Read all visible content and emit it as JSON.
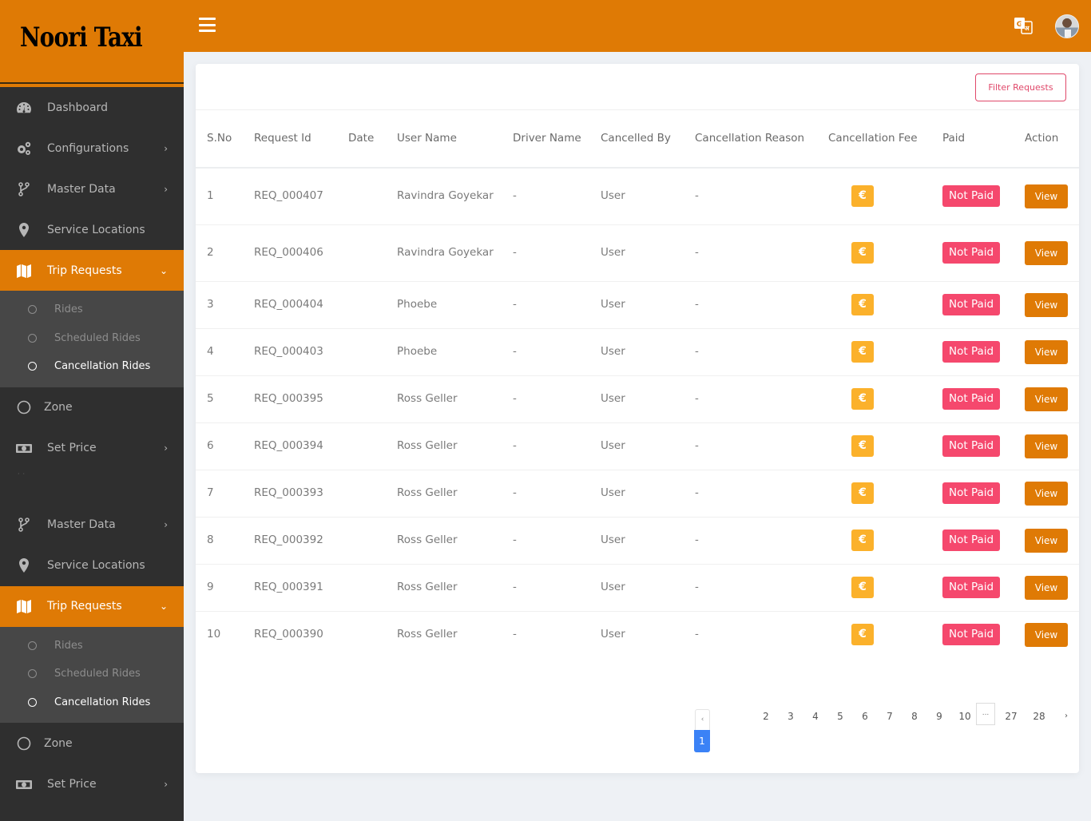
{
  "brand": {
    "title": "Noori Taxi"
  },
  "colors": {
    "brand_orange": "#df7a05",
    "sidebar_bg": "#2f2f2f",
    "submenu_bg": "#474747",
    "fee_badge": "#fbb12b",
    "not_paid_badge": "#f5486d",
    "filter_border": "#e0486a",
    "page_active": "#3b82f6"
  },
  "topbar": {
    "menu_icon": "hamburger-icon",
    "translate_icon": "google-translate-icon",
    "avatar_alt": "user-avatar"
  },
  "sidebar": {
    "items": [
      {
        "label": "Dashboard",
        "icon": "dashboard-gauge-icon",
        "chevron": ""
      },
      {
        "label": "Configurations",
        "icon": "gears-icon",
        "chevron": "›"
      },
      {
        "label": "Master Data",
        "icon": "code-branch-icon",
        "chevron": "›"
      },
      {
        "label": "Service Locations",
        "icon": "map-marker-icon",
        "chevron": ""
      },
      {
        "label": "Trip Requests",
        "icon": "map-icon",
        "chevron": "⌄",
        "active": true,
        "submenu": [
          {
            "label": "Rides"
          },
          {
            "label": "Scheduled Rides"
          },
          {
            "label": "Cancellation Rides",
            "current": true
          }
        ]
      },
      {
        "label": "Zone",
        "icon": "circle-icon",
        "chevron": ""
      },
      {
        "label": "Set Price",
        "icon": "money-bill-icon",
        "chevron": "›"
      }
    ],
    "repeat_items": [
      {
        "label": "Master Data",
        "icon": "code-branch-icon",
        "chevron": "›"
      },
      {
        "label": "Service Locations",
        "icon": "map-marker-icon",
        "chevron": ""
      },
      {
        "label": "Trip Requests",
        "icon": "map-icon",
        "chevron": "⌄",
        "active": true,
        "submenu": [
          {
            "label": "Rides"
          },
          {
            "label": "Scheduled Rides"
          },
          {
            "label": "Cancellation Rides",
            "current": true
          }
        ]
      },
      {
        "label": "Zone",
        "icon": "circle-icon",
        "chevron": ""
      },
      {
        "label": "Set Price",
        "icon": "money-bill-icon",
        "chevron": "›"
      }
    ]
  },
  "card": {
    "filter_button": "Filter Requests"
  },
  "table": {
    "headers": [
      "S.No",
      "Request Id",
      "Date",
      "User Name",
      "Driver Name",
      "Cancelled By",
      "Cancellation Reason",
      "Cancellation Fee",
      "Paid",
      "Action"
    ],
    "rows": [
      {
        "sno": "1",
        "request_id": "REQ_000407",
        "date": "",
        "user_name": "Ravindra Goyekar",
        "driver_name": "-",
        "cancelled_by": "User",
        "reason": "-",
        "fee_icon": "€",
        "paid": "Not Paid",
        "action": "View"
      },
      {
        "sno": "2",
        "request_id": "REQ_000406",
        "date": "",
        "user_name": "Ravindra Goyekar",
        "driver_name": "-",
        "cancelled_by": "User",
        "reason": "-",
        "fee_icon": "€",
        "paid": "Not Paid",
        "action": "View"
      },
      {
        "sno": "3",
        "request_id": "REQ_000404",
        "date": "",
        "user_name": "Phoebe",
        "driver_name": "-",
        "cancelled_by": "User",
        "reason": "-",
        "fee_icon": "€",
        "paid": "Not Paid",
        "action": "View"
      },
      {
        "sno": "4",
        "request_id": "REQ_000403",
        "date": "",
        "user_name": "Phoebe",
        "driver_name": "-",
        "cancelled_by": "User",
        "reason": "-",
        "fee_icon": "€",
        "paid": "Not Paid",
        "action": "View"
      },
      {
        "sno": "5",
        "request_id": "REQ_000395",
        "date": "",
        "user_name": "Ross Geller",
        "driver_name": "-",
        "cancelled_by": "User",
        "reason": "-",
        "fee_icon": "€",
        "paid": "Not Paid",
        "action": "View"
      },
      {
        "sno": "6",
        "request_id": "REQ_000394",
        "date": "",
        "user_name": "Ross Geller",
        "driver_name": "-",
        "cancelled_by": "User",
        "reason": "-",
        "fee_icon": "€",
        "paid": "Not Paid",
        "action": "View"
      },
      {
        "sno": "7",
        "request_id": "REQ_000393",
        "date": "",
        "user_name": "Ross Geller",
        "driver_name": "-",
        "cancelled_by": "User",
        "reason": "-",
        "fee_icon": "€",
        "paid": "Not Paid",
        "action": "View"
      },
      {
        "sno": "8",
        "request_id": "REQ_000392",
        "date": "",
        "user_name": "Ross Geller",
        "driver_name": "-",
        "cancelled_by": "User",
        "reason": "-",
        "fee_icon": "€",
        "paid": "Not Paid",
        "action": "View"
      },
      {
        "sno": "9",
        "request_id": "REQ_000391",
        "date": "",
        "user_name": "Ross Geller",
        "driver_name": "-",
        "cancelled_by": "User",
        "reason": "-",
        "fee_icon": "€",
        "paid": "Not Paid",
        "action": "View"
      },
      {
        "sno": "10",
        "request_id": "REQ_000390",
        "date": "",
        "user_name": "Ross Geller",
        "driver_name": "-",
        "cancelled_by": "User",
        "reason": "-",
        "fee_icon": "€",
        "paid": "Not Paid",
        "action": "View"
      }
    ]
  },
  "pagination": {
    "prev": "‹",
    "current": "1",
    "pages": [
      "2",
      "3",
      "4",
      "5",
      "6",
      "7",
      "8",
      "9",
      "10"
    ],
    "ellipsis": "...",
    "last_pages": [
      "27",
      "28"
    ],
    "next": "›"
  }
}
